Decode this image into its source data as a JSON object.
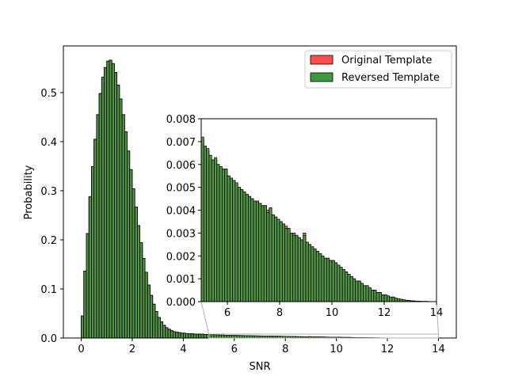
{
  "chart_data": {
    "type": "bar",
    "subtype": "overlaid-histogram",
    "title": "",
    "xlabel": "SNR",
    "ylabel": "Probability",
    "xlim": [
      -0.7,
      14.7
    ],
    "ylim": [
      0,
      0.595
    ],
    "xticks": [
      0,
      2,
      4,
      6,
      8,
      10,
      12,
      14
    ],
    "yticks": [
      0.0,
      0.1,
      0.2,
      0.3,
      0.4,
      0.5
    ],
    "ytick_labels": [
      "0.0",
      "0.1",
      "0.2",
      "0.3",
      "0.4",
      "0.5"
    ],
    "legend": {
      "placement": "upper-right",
      "entries": [
        {
          "label": "Original Template",
          "color": "#ff4d4d"
        },
        {
          "label": "Reversed Template",
          "color": "#3f9a3f"
        }
      ]
    },
    "bin_width": 0.1,
    "series": [
      {
        "name": "Original Template",
        "color": "#ff4d4d",
        "bin_start": 0.0,
        "values": [
          0.045,
          0.136,
          0.213,
          0.288,
          0.349,
          0.405,
          0.455,
          0.498,
          0.531,
          0.551,
          0.564,
          0.566,
          0.559,
          0.541,
          0.515,
          0.487,
          0.455,
          0.42,
          0.381,
          0.343,
          0.304,
          0.267,
          0.229,
          0.194,
          0.162,
          0.134,
          0.108,
          0.087,
          0.069,
          0.054,
          0.042,
          0.033,
          0.026,
          0.021,
          0.018,
          0.015,
          0.013,
          0.012,
          0.011,
          0.01,
          0.01,
          0.009,
          0.009,
          0.009,
          0.008,
          0.008,
          0.008,
          0.008,
          0.0075,
          0.0072
        ]
      },
      {
        "name": "Reversed Template",
        "color": "#3f9a3f",
        "bin_start": 0.0,
        "values": [
          0.045,
          0.136,
          0.213,
          0.288,
          0.349,
          0.405,
          0.455,
          0.498,
          0.531,
          0.551,
          0.564,
          0.566,
          0.559,
          0.541,
          0.515,
          0.487,
          0.455,
          0.42,
          0.381,
          0.343,
          0.304,
          0.267,
          0.229,
          0.194,
          0.162,
          0.134,
          0.108,
          0.087,
          0.069,
          0.054,
          0.042,
          0.033,
          0.026,
          0.021,
          0.018,
          0.015,
          0.013,
          0.012,
          0.011,
          0.01,
          0.01,
          0.009,
          0.009,
          0.009,
          0.008,
          0.008,
          0.008,
          0.008,
          0.0075,
          0.0072
        ]
      }
    ],
    "inset": {
      "type": "bar",
      "xlim": [
        5.0,
        14.0
      ],
      "ylim": [
        0,
        0.008
      ],
      "xticks": [
        6,
        8,
        10,
        12,
        14
      ],
      "yticks": [
        0.0,
        0.001,
        0.002,
        0.003,
        0.004,
        0.005,
        0.006,
        0.007,
        0.008
      ],
      "ytick_labels": [
        "0.000",
        "0.001",
        "0.002",
        "0.003",
        "0.004",
        "0.005",
        "0.006",
        "0.007",
        "0.008"
      ],
      "bin_width": 0.1,
      "bin_start": 5.0,
      "series": [
        {
          "name": "Original Template",
          "color": "#ff4d4d",
          "values": [
            0.0071,
            0.0068,
            0.0066,
            0.0064,
            0.0062,
            0.0062,
            0.006,
            0.0059,
            0.0058,
            0.0058,
            0.0055,
            0.0054,
            0.0053,
            0.0052,
            0.005,
            0.0049,
            0.0048,
            0.0047,
            0.0046,
            0.0045,
            0.0044,
            0.0044,
            0.0043,
            0.0042,
            0.0042,
            0.004,
            0.0041,
            0.0038,
            0.0037,
            0.0036,
            0.0035,
            0.0034,
            0.0033,
            0.0032,
            0.003,
            0.003,
            0.0029,
            0.0028,
            0.0027,
            0.003,
            0.0026,
            0.0025,
            0.0024,
            0.0023,
            0.0022,
            0.0021,
            0.002,
            0.0019,
            0.0019,
            0.0018,
            0.0018,
            0.0017,
            0.0016,
            0.0015,
            0.0014,
            0.0013,
            0.0012,
            0.0011,
            0.001,
            0.0009,
            0.0009,
            0.0008,
            0.0007,
            0.0007,
            0.0006,
            0.0005,
            0.0005,
            0.0004,
            0.0004,
            0.0003,
            0.0003,
            0.00025,
            0.0002,
            0.0002,
            0.00015,
            0.00012,
            0.0001,
            8e-05,
            6e-05,
            5e-05,
            4e-05,
            3e-05,
            2e-05,
            2e-05,
            1e-05,
            1e-05,
            1e-05,
            0.0,
            0.0,
            0.0
          ]
        },
        {
          "name": "Reversed Template",
          "color": "#3f9a3f",
          "values": [
            0.0072,
            0.0068,
            0.0067,
            0.0064,
            0.0062,
            0.0063,
            0.006,
            0.0059,
            0.0058,
            0.0058,
            0.0055,
            0.0054,
            0.0053,
            0.0052,
            0.005,
            0.0049,
            0.0048,
            0.0047,
            0.0046,
            0.0045,
            0.0044,
            0.0044,
            0.0043,
            0.0042,
            0.0042,
            0.0039,
            0.0041,
            0.0038,
            0.0037,
            0.0036,
            0.0035,
            0.0034,
            0.0032,
            0.0032,
            0.003,
            0.0029,
            0.0029,
            0.0028,
            0.0027,
            0.0029,
            0.0026,
            0.0025,
            0.0024,
            0.0023,
            0.0022,
            0.0021,
            0.002,
            0.0019,
            0.0019,
            0.0018,
            0.0018,
            0.0017,
            0.0016,
            0.0015,
            0.0014,
            0.0013,
            0.0012,
            0.0011,
            0.001,
            0.0009,
            0.0009,
            0.0008,
            0.0007,
            0.0007,
            0.0006,
            0.0005,
            0.0005,
            0.0004,
            0.0004,
            0.0003,
            0.0003,
            0.00025,
            0.0002,
            0.0002,
            0.00015,
            0.00012,
            0.0001,
            8e-05,
            6e-05,
            5e-05,
            4e-05,
            3e-05,
            2e-05,
            2e-05,
            1e-05,
            1e-05,
            1e-05,
            0.0,
            0.0,
            0.0
          ]
        }
      ]
    }
  }
}
